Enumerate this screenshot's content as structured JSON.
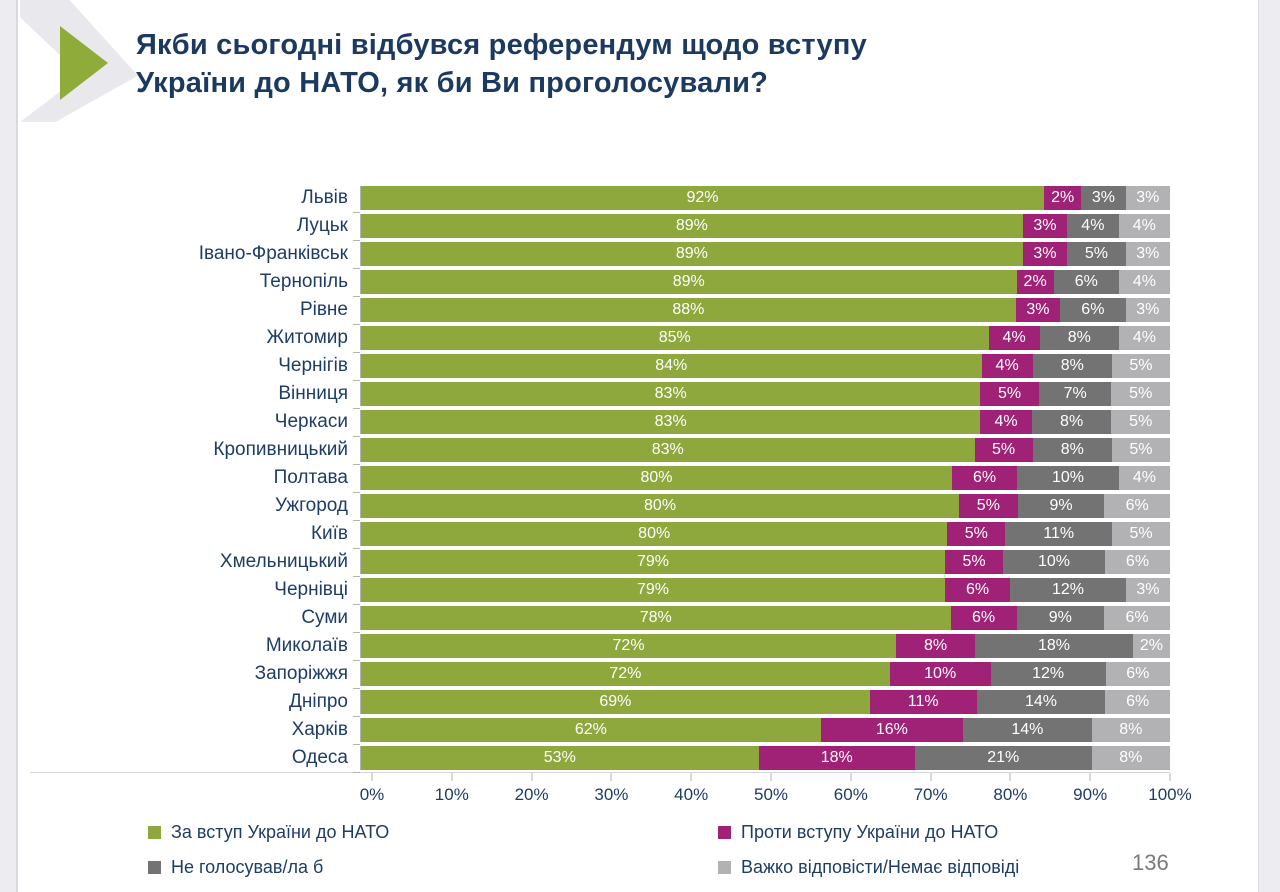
{
  "header": {
    "title_line1": "Якби сьогодні відбувся референдум щодо вступу",
    "title_line2": "України до НАТО, як би Ви проголосували?"
  },
  "page": {
    "number": "136"
  },
  "colors": {
    "pro": "#8fa83d",
    "against": "#a02277",
    "would_not_vote": "#737373",
    "hard_to_say": "#b2b2b4",
    "title_navy": "#1c3a5f",
    "label_navy": "#1e3d66",
    "accent_triangle": "#8fac3b"
  },
  "chart_data": {
    "type": "bar",
    "orientation": "horizontal-stacked",
    "value_suffix": "%",
    "xlim": [
      0,
      100
    ],
    "x_ticks": [
      "0%",
      "10%",
      "20%",
      "30%",
      "40%",
      "50%",
      "60%",
      "70%",
      "80%",
      "90%",
      "100%"
    ],
    "legend_position": "bottom",
    "categories": [
      "Львів",
      "Луцьк",
      "Івано-Франківськ",
      "Тернопіль",
      "Рівне",
      "Житомир",
      "Чернігів",
      "Вінниця",
      "Черкаси",
      "Кропивницький",
      "Полтава",
      "Ужгород",
      "Київ",
      "Хмельницький",
      "Чернівці",
      "Суми",
      "Миколаїв",
      "Запоріжжя",
      "Дніпро",
      "Харків",
      "Одеса"
    ],
    "series": [
      {
        "name": "За вступ України до НАТО",
        "color": "#8fa83d",
        "values": [
          92,
          89,
          89,
          89,
          88,
          85,
          84,
          83,
          83,
          83,
          80,
          80,
          80,
          79,
          79,
          78,
          72,
          72,
          69,
          62,
          53
        ]
      },
      {
        "name": "Проти вступу України до НАТО",
        "color": "#a02277",
        "values": [
          2,
          3,
          3,
          2,
          3,
          4,
          4,
          5,
          4,
          5,
          6,
          5,
          5,
          5,
          6,
          6,
          8,
          10,
          11,
          16,
          18
        ]
      },
      {
        "name": "Не голосував/ла б",
        "color": "#737373",
        "values": [
          3,
          4,
          5,
          6,
          6,
          8,
          8,
          7,
          8,
          8,
          10,
          9,
          11,
          10,
          12,
          9,
          18,
          12,
          14,
          14,
          21
        ]
      },
      {
        "name": "Важко відповісти/Немає відповіді",
        "color": "#b2b2b4",
        "values": [
          3,
          4,
          3,
          4,
          3,
          4,
          5,
          5,
          5,
          5,
          4,
          6,
          5,
          6,
          3,
          6,
          2,
          6,
          6,
          8,
          8
        ]
      }
    ]
  }
}
